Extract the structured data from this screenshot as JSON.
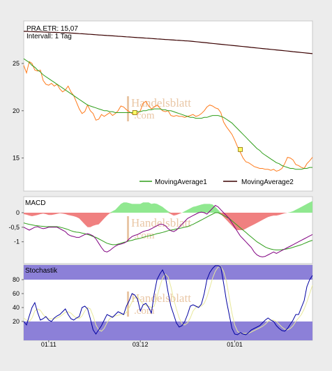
{
  "watermark": {
    "line1": "Handelsblatt",
    "line2": ".com"
  },
  "chart_data": [
    {
      "type": "line",
      "title": "PRA.ETR: 15,07",
      "subtitle": "Intervall: 1 Tag",
      "ylim": [
        11.5,
        29.5
      ],
      "yticks": [
        15,
        20,
        25
      ],
      "ytick_labels": [
        "15",
        "20",
        "25"
      ],
      "x_range": [
        0,
        104
      ],
      "xtick_positions": [
        9,
        42,
        76
      ],
      "xtick_labels": [
        "01.11",
        "03.12",
        "01.01"
      ],
      "grid": false,
      "legend_placement": "bottom-right",
      "colors": {
        "price": "#ff7a1a",
        "ma1": "#2f9e1a",
        "ma2": "#3a0000"
      },
      "legend": [
        "MovingAverage1",
        "MovingAverage2"
      ],
      "series": [
        {
          "role": "price",
          "values": [
            24.8,
            24.0,
            25.2,
            25.0,
            24.3,
            24.2,
            24.3,
            23.2,
            22.8,
            22.7,
            22.9,
            22.6,
            22.8,
            22.3,
            22.0,
            22.2,
            22.6,
            22.0,
            21.6,
            20.9,
            20.2,
            19.7,
            19.9,
            20.6,
            20.0,
            19.7,
            19.0,
            19.1,
            19.6,
            19.4,
            19.6,
            19.8,
            19.5,
            19.7,
            20.0,
            20.5,
            20.4,
            20.1,
            19.9,
            19.7,
            19.6,
            19.7,
            20.0,
            20.8,
            21.0,
            20.5,
            20.2,
            20.4,
            20.6,
            20.3,
            20.0,
            19.9,
            20.0,
            19.5,
            19.4,
            19.5,
            19.4,
            19.4,
            19.3,
            19.4,
            19.5,
            19.6,
            19.4,
            19.5,
            19.7,
            20.0,
            20.4,
            20.6,
            20.5,
            20.3,
            20.2,
            19.8,
            18.8,
            18.3,
            17.9,
            17.5,
            16.9,
            16.2,
            15.6,
            15.0,
            14.6,
            14.5,
            14.3,
            14.1,
            14.0,
            13.9,
            13.9,
            13.8,
            13.8,
            13.7,
            13.8,
            13.6,
            13.7,
            13.9,
            14.4,
            15.07,
            15.0,
            14.8,
            14.3,
            14.2,
            14.0,
            13.9,
            14.4,
            14.7,
            15.07
          ]
        },
        {
          "role": "ma1",
          "name": "MovingAverage1",
          "values": [
            25.5,
            25.3,
            25.1,
            24.8,
            24.6,
            24.3,
            24.1,
            23.8,
            23.6,
            23.4,
            23.2,
            23.0,
            22.8,
            22.6,
            22.4,
            22.2,
            22.0,
            21.8,
            21.6,
            21.4,
            21.2,
            21.0,
            20.8,
            20.6,
            20.5,
            20.4,
            20.3,
            20.2,
            20.1,
            20.0,
            20.0,
            19.9,
            19.9,
            19.8,
            19.8,
            19.8,
            19.8,
            19.8,
            19.8,
            19.8,
            19.8,
            19.9,
            19.9,
            20.0,
            20.0,
            20.1,
            20.1,
            20.2,
            20.2,
            20.2,
            20.1,
            20.1,
            20.0,
            20.0,
            19.9,
            19.8,
            19.7,
            19.6,
            19.5,
            19.4,
            19.3,
            19.3,
            19.2,
            19.2,
            19.2,
            19.3,
            19.3,
            19.4,
            19.5,
            19.5,
            19.5,
            19.4,
            19.3,
            19.1,
            18.9,
            18.7,
            18.4,
            18.1,
            17.8,
            17.5,
            17.2,
            16.9,
            16.6,
            16.3,
            16.0,
            15.8,
            15.5,
            15.3,
            15.1,
            14.9,
            14.7,
            14.5,
            14.4,
            14.2,
            14.1,
            14.0,
            13.9,
            13.9,
            13.8,
            13.8,
            13.8,
            13.9,
            13.9,
            14.0,
            14.0
          ]
        },
        {
          "role": "ma2",
          "name": "MovingAverage2",
          "values": [
            28.4,
            28.39,
            28.38,
            28.37,
            28.36,
            28.35,
            28.34,
            28.33,
            28.32,
            28.31,
            28.3,
            28.29,
            28.28,
            28.27,
            28.26,
            28.25,
            28.24,
            28.22,
            28.2,
            28.18,
            28.16,
            28.14,
            28.12,
            28.1,
            28.08,
            28.06,
            28.04,
            28.02,
            28.0,
            27.98,
            27.96,
            27.94,
            27.92,
            27.9,
            27.88,
            27.86,
            27.84,
            27.82,
            27.8,
            27.78,
            27.76,
            27.74,
            27.72,
            27.7,
            27.68,
            27.66,
            27.64,
            27.62,
            27.6,
            27.58,
            27.56,
            27.54,
            27.52,
            27.5,
            27.48,
            27.46,
            27.44,
            27.42,
            27.4,
            27.38,
            27.36,
            27.33,
            27.3,
            27.27,
            27.24,
            27.21,
            27.18,
            27.15,
            27.12,
            27.09,
            27.06,
            27.03,
            27.0,
            26.97,
            26.94,
            26.91,
            26.88,
            26.85,
            26.82,
            26.79,
            26.76,
            26.73,
            26.7,
            26.67,
            26.64,
            26.61,
            26.58,
            26.55,
            26.52,
            26.49,
            26.46,
            26.43,
            26.4,
            26.37,
            26.34,
            26.31,
            26.28,
            26.25,
            26.22,
            26.19,
            26.16,
            26.13,
            26.1,
            26.07,
            26.04
          ]
        }
      ],
      "markers": [
        {
          "x": 40,
          "y": 19.8
        },
        {
          "x": 78,
          "y": 15.9
        }
      ]
    },
    {
      "type": "area",
      "title": "MACD",
      "ylim": [
        -1.75,
        0.55
      ],
      "yticks": [
        0,
        -0.5,
        -1
      ],
      "ytick_labels": [
        "0",
        "-0,5",
        "-1"
      ],
      "colors": {
        "hist_pos": "#90e890",
        "hist_neg": "#f08080",
        "macd": "#800080",
        "signal": "#2f9e1a"
      },
      "series": [
        {
          "role": "histogram",
          "values": [
            -0.05,
            -0.07,
            -0.1,
            -0.12,
            -0.1,
            -0.08,
            -0.05,
            -0.03,
            -0.05,
            -0.08,
            -0.08,
            -0.06,
            -0.04,
            -0.02,
            -0.03,
            -0.05,
            -0.08,
            -0.1,
            -0.12,
            -0.15,
            -0.2,
            -0.3,
            -0.4,
            -0.5,
            -0.5,
            -0.45,
            -0.42,
            -0.4,
            -0.3,
            -0.2,
            -0.1,
            -0.02,
            0.05,
            0.1,
            0.2,
            0.3,
            0.35,
            0.35,
            0.33,
            0.3,
            0.3,
            0.3,
            0.3,
            0.35,
            0.35,
            0.35,
            0.3,
            0.32,
            0.3,
            0.25,
            0.2,
            0.12,
            0.05,
            -0.05,
            -0.1,
            -0.08,
            -0.04,
            0.0,
            0.05,
            0.1,
            0.15,
            0.2,
            0.22,
            0.25,
            0.28,
            0.3,
            0.3,
            0.3,
            0.28,
            0.2,
            0.1,
            -0.05,
            -0.15,
            -0.25,
            -0.35,
            -0.45,
            -0.55,
            -0.6,
            -0.6,
            -0.6,
            -0.55,
            -0.5,
            -0.45,
            -0.4,
            -0.35,
            -0.3,
            -0.25,
            -0.2,
            -0.15,
            -0.12,
            -0.1,
            -0.1,
            -0.08,
            -0.05,
            -0.02,
            0.0,
            0.02,
            0.05,
            0.1,
            0.15,
            0.2,
            0.25,
            0.3,
            0.35,
            0.4
          ]
        },
        {
          "role": "macd",
          "values": [
            -0.5,
            -0.55,
            -0.6,
            -0.55,
            -0.5,
            -0.48,
            -0.52,
            -0.55,
            -0.53,
            -0.5,
            -0.5,
            -0.5,
            -0.5,
            -0.55,
            -0.6,
            -0.65,
            -0.75,
            -0.8,
            -0.82,
            -0.85,
            -0.85,
            -0.8,
            -0.75,
            -0.72,
            -0.75,
            -0.8,
            -0.9,
            -1.05,
            -1.2,
            -1.32,
            -1.35,
            -1.3,
            -1.22,
            -1.15,
            -1.1,
            -1.08,
            -1.05,
            -1.0,
            -0.9,
            -0.82,
            -0.78,
            -0.75,
            -0.7,
            -0.65,
            -0.62,
            -0.6,
            -0.55,
            -0.5,
            -0.45,
            -0.4,
            -0.4,
            -0.45,
            -0.55,
            -0.62,
            -0.65,
            -0.6,
            -0.5,
            -0.4,
            -0.3,
            -0.2,
            -0.15,
            -0.1,
            -0.05,
            0.0,
            0.02,
            0.0,
            -0.05,
            0.05,
            0.15,
            0.25,
            0.2,
            0.1,
            0.0,
            -0.1,
            -0.2,
            -0.35,
            -0.5,
            -0.65,
            -0.8,
            -0.9,
            -1.0,
            -1.1,
            -1.2,
            -1.35,
            -1.45,
            -1.5,
            -1.52,
            -1.5,
            -1.45,
            -1.4,
            -1.35,
            -1.4,
            -1.35,
            -1.3,
            -1.25,
            -1.2,
            -1.15,
            -1.1,
            -1.05,
            -1.0,
            -0.95,
            -0.9,
            -0.85,
            -0.8,
            -0.75
          ]
        },
        {
          "role": "signal",
          "values": [
            -0.35,
            -0.38,
            -0.4,
            -0.42,
            -0.44,
            -0.45,
            -0.46,
            -0.47,
            -0.48,
            -0.48,
            -0.48,
            -0.48,
            -0.48,
            -0.5,
            -0.52,
            -0.55,
            -0.58,
            -0.62,
            -0.65,
            -0.67,
            -0.68,
            -0.7,
            -0.72,
            -0.75,
            -0.78,
            -0.82,
            -0.85,
            -0.9,
            -0.95,
            -1.0,
            -1.05,
            -1.08,
            -1.1,
            -1.1,
            -1.08,
            -1.05,
            -1.02,
            -1.0,
            -0.97,
            -0.95,
            -0.92,
            -0.9,
            -0.88,
            -0.85,
            -0.82,
            -0.8,
            -0.78,
            -0.75,
            -0.72,
            -0.7,
            -0.68,
            -0.65,
            -0.62,
            -0.6,
            -0.58,
            -0.56,
            -0.54,
            -0.52,
            -0.5,
            -0.48,
            -0.44,
            -0.4,
            -0.35,
            -0.3,
            -0.25,
            -0.2,
            -0.15,
            -0.1,
            -0.05,
            0.0,
            0.0,
            -0.05,
            -0.1,
            -0.15,
            -0.2,
            -0.28,
            -0.36,
            -0.44,
            -0.52,
            -0.6,
            -0.68,
            -0.76,
            -0.84,
            -0.92,
            -1.0,
            -1.06,
            -1.12,
            -1.18,
            -1.22,
            -1.25,
            -1.27,
            -1.28,
            -1.28,
            -1.27,
            -1.26,
            -1.24,
            -1.22,
            -1.19,
            -1.16,
            -1.13,
            -1.1,
            -1.06,
            -1.02,
            -0.98,
            -0.95
          ]
        }
      ]
    },
    {
      "type": "line",
      "title": "Stochastik",
      "ylim": [
        -7,
        101
      ],
      "yticks": [
        80,
        60,
        40,
        20
      ],
      "ytick_labels": [
        "80",
        "60",
        "40",
        "20"
      ],
      "bands": [
        [
          80,
          101
        ],
        [
          -7,
          20
        ]
      ],
      "colors": {
        "band": "#8c80d8",
        "k": "#0000a0",
        "d": "#e8e89a"
      },
      "series": [
        {
          "role": "k",
          "values": [
            20,
            15,
            28,
            40,
            47,
            33,
            22,
            24,
            27,
            22,
            20,
            25,
            28,
            30,
            34,
            38,
            30,
            24,
            22,
            25,
            27,
            40,
            42,
            38,
            24,
            8,
            2,
            8,
            14,
            22,
            30,
            28,
            26,
            30,
            34,
            32,
            30,
            42,
            50,
            60,
            58,
            52,
            35,
            44,
            46,
            40,
            32,
            60,
            80,
            88,
            94,
            85,
            62,
            42,
            30,
            18,
            12,
            14,
            20,
            30,
            42,
            44,
            42,
            40,
            45,
            60,
            80,
            90,
            96,
            100,
            100,
            98,
            75,
            50,
            30,
            10,
            2,
            1,
            4,
            2,
            1,
            4,
            8,
            10,
            12,
            14,
            18,
            22,
            25,
            22,
            20,
            14,
            10,
            7,
            6,
            10,
            16,
            22,
            30,
            30,
            40,
            50,
            70,
            80,
            86
          ]
        },
        {
          "role": "d",
          "values": [
            25,
            22,
            20,
            25,
            35,
            38,
            36,
            30,
            26,
            24,
            24,
            24,
            25,
            27,
            30,
            33,
            34,
            32,
            28,
            25,
            24,
            28,
            35,
            40,
            38,
            28,
            15,
            8,
            6,
            10,
            18,
            24,
            27,
            28,
            29,
            30,
            30,
            33,
            40,
            48,
            55,
            56,
            50,
            45,
            43,
            42,
            40,
            42,
            55,
            70,
            82,
            88,
            84,
            70,
            52,
            38,
            25,
            17,
            15,
            18,
            25,
            35,
            40,
            42,
            42,
            46,
            55,
            68,
            82,
            92,
            98,
            99,
            92,
            78,
            55,
            32,
            15,
            6,
            3,
            3,
            3,
            3,
            5,
            7,
            9,
            11,
            13,
            16,
            20,
            22,
            22,
            20,
            16,
            12,
            9,
            8,
            10,
            14,
            20,
            25,
            30,
            38,
            48,
            60,
            72
          ]
        }
      ]
    }
  ]
}
